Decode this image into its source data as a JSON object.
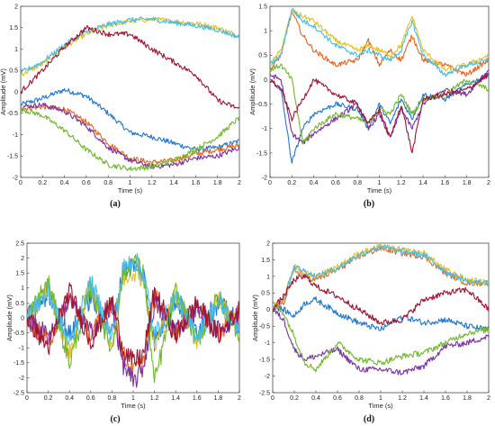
{
  "chart_data": [
    {
      "type": "line",
      "panel_label": "(a)",
      "xlabel": "Time (s)",
      "ylabel": "Amplitude (mV)",
      "xlim": [
        0,
        2
      ],
      "ylim": [
        -2,
        2
      ],
      "xticks": [
        "0",
        "0.2",
        "0.4",
        "0.6",
        "0.8",
        "1",
        "1.2",
        "1.4",
        "1.6",
        "1.8",
        "2"
      ],
      "yticks": [
        "-2",
        "-1.5",
        "-1",
        "-0.5",
        "0",
        "0.5",
        "1",
        "1.5",
        "2"
      ],
      "grid": false,
      "x": [
        0,
        0.2,
        0.4,
        0.6,
        0.8,
        1.0,
        1.2,
        1.4,
        1.6,
        1.8,
        2.0
      ],
      "series": [
        {
          "color": "#1f77d4",
          "values": [
            -0.3,
            -0.15,
            0.05,
            -0.1,
            -0.5,
            -0.95,
            -1.05,
            -1.2,
            -1.35,
            -1.3,
            -1.15
          ]
        },
        {
          "color": "#e8641e",
          "values": [
            -0.4,
            -0.35,
            -0.4,
            -0.7,
            -1.2,
            -1.55,
            -1.65,
            -1.6,
            -1.45,
            -1.35,
            -1.25
          ]
        },
        {
          "color": "#e8c020",
          "values": [
            0.4,
            0.65,
            1.05,
            1.35,
            1.55,
            1.65,
            1.7,
            1.65,
            1.6,
            1.5,
            1.3
          ]
        },
        {
          "color": "#7b2fa0",
          "values": [
            -0.35,
            -0.3,
            -0.45,
            -0.8,
            -1.3,
            -1.6,
            -1.75,
            -1.7,
            -1.55,
            -1.5,
            -1.3
          ]
        },
        {
          "color": "#6fb82c",
          "values": [
            -0.4,
            -0.55,
            -0.9,
            -1.35,
            -1.7,
            -1.8,
            -1.75,
            -1.6,
            -1.35,
            -1.05,
            -0.6
          ]
        },
        {
          "color": "#45bce8",
          "values": [
            0.45,
            0.7,
            1.1,
            1.4,
            1.58,
            1.68,
            1.7,
            1.62,
            1.55,
            1.45,
            1.28
          ]
        },
        {
          "color": "#a3122f",
          "values": [
            0.0,
            0.5,
            1.05,
            1.5,
            1.35,
            1.35,
            1.0,
            0.7,
            0.4,
            -0.2,
            -0.4
          ]
        }
      ]
    },
    {
      "type": "line",
      "panel_label": "(b)",
      "xlabel": "Time (s)",
      "ylabel": "Amplitude (mV)",
      "xlim": [
        0,
        2
      ],
      "ylim": [
        -2,
        1.5
      ],
      "xticks": [
        "0",
        "0.2",
        "0.4",
        "0.6",
        "0.8",
        "1",
        "1.2",
        "1.4",
        "1.6",
        "1.8",
        "2"
      ],
      "yticks": [
        "-2",
        "-1.5",
        "-1",
        "-0.5",
        "0",
        "0.5",
        "1",
        "1.5"
      ],
      "grid": false,
      "x": [
        0,
        0.1,
        0.2,
        0.3,
        0.4,
        0.6,
        0.8,
        0.9,
        1.0,
        1.1,
        1.2,
        1.3,
        1.4,
        1.6,
        1.8,
        2.0
      ],
      "series": [
        {
          "color": "#1f77d4",
          "values": [
            0.0,
            -0.2,
            -1.7,
            -1.0,
            -0.7,
            -0.5,
            -0.6,
            -1.0,
            -0.5,
            -0.9,
            -0.4,
            -0.8,
            -0.3,
            -0.4,
            -0.1,
            0.1
          ]
        },
        {
          "color": "#e8641e",
          "values": [
            0.2,
            0.5,
            1.4,
            0.9,
            0.6,
            0.3,
            0.4,
            0.8,
            0.3,
            0.6,
            0.4,
            0.9,
            0.4,
            0.3,
            0.1,
            0.4
          ]
        },
        {
          "color": "#e8c020",
          "values": [
            0.3,
            0.6,
            1.4,
            1.3,
            1.2,
            0.8,
            0.6,
            0.7,
            0.6,
            0.5,
            0.7,
            1.3,
            0.6,
            0.2,
            0.3,
            0.5
          ]
        },
        {
          "color": "#7b2fa0",
          "values": [
            0.1,
            0.0,
            -1.1,
            -1.3,
            -1.1,
            -0.8,
            -0.5,
            -1.0,
            -0.7,
            -1.2,
            -0.6,
            -1.0,
            -0.5,
            -0.2,
            -0.3,
            0.2
          ]
        },
        {
          "color": "#6fb82c",
          "values": [
            0.2,
            0.3,
            0.0,
            -1.3,
            -1.0,
            -0.7,
            -0.8,
            -0.9,
            -0.6,
            -0.7,
            -0.3,
            -0.7,
            -0.4,
            -0.3,
            0.0,
            -0.2
          ]
        },
        {
          "color": "#45bce8",
          "values": [
            0.3,
            0.5,
            1.45,
            1.2,
            1.1,
            0.7,
            0.5,
            0.6,
            0.5,
            0.4,
            0.6,
            1.2,
            0.5,
            0.1,
            0.3,
            0.4
          ]
        },
        {
          "color": "#a3122f",
          "values": [
            0.0,
            -0.2,
            -0.8,
            -0.4,
            0.0,
            -0.3,
            -0.5,
            -0.9,
            -0.6,
            -1.2,
            -0.5,
            -1.5,
            -0.4,
            -0.3,
            -0.2,
            0.1
          ]
        }
      ]
    },
    {
      "type": "line",
      "panel_label": "(c)",
      "xlabel": "Time (s)",
      "ylabel": "Amplitude (mV)",
      "xlim": [
        0,
        2
      ],
      "ylim": [
        -2.5,
        2.5
      ],
      "xticks": [
        "0",
        "0.2",
        "0.4",
        "0.6",
        "0.8",
        "1",
        "1.2",
        "1.4",
        "1.6",
        "1.8",
        "2"
      ],
      "yticks": [
        "-2.5",
        "-2",
        "-1.5",
        "-1",
        "-0.5",
        "0",
        "0.5",
        "1",
        "1.5",
        "2",
        "2.5"
      ],
      "grid": false,
      "x": [
        0,
        0.2,
        0.4,
        0.6,
        0.8,
        0.9,
        1.0,
        1.1,
        1.2,
        1.4,
        1.6,
        1.8,
        2.0
      ],
      "series": [
        {
          "color": "#1f77d4",
          "values": [
            0.0,
            0.8,
            -0.6,
            0.7,
            -0.5,
            1.5,
            1.8,
            1.4,
            -0.8,
            0.6,
            -0.4,
            0.5,
            -0.2
          ]
        },
        {
          "color": "#e8641e",
          "values": [
            0.0,
            -0.8,
            0.7,
            -0.6,
            0.5,
            -1.2,
            -1.8,
            -1.4,
            0.7,
            -0.5,
            0.4,
            -0.5,
            0.2
          ]
        },
        {
          "color": "#e8c020",
          "values": [
            0.0,
            1.0,
            -1.2,
            1.1,
            -0.9,
            1.3,
            1.6,
            1.3,
            -1.0,
            0.8,
            -0.7,
            0.6,
            -0.4
          ]
        },
        {
          "color": "#7b2fa0",
          "values": [
            0.0,
            -0.6,
            0.6,
            -0.5,
            0.4,
            -1.5,
            -2.2,
            -1.6,
            0.5,
            -0.4,
            0.3,
            -0.4,
            0.1
          ]
        },
        {
          "color": "#6fb82c",
          "values": [
            0.0,
            1.2,
            -1.5,
            1.0,
            -1.1,
            1.4,
            1.9,
            1.5,
            -2.2,
            0.9,
            -0.8,
            0.7,
            -0.5
          ]
        },
        {
          "color": "#45bce8",
          "values": [
            0.0,
            0.9,
            -0.9,
            1.2,
            -0.7,
            1.6,
            2.0,
            1.5,
            -0.6,
            0.7,
            -0.6,
            0.5,
            -0.3
          ]
        },
        {
          "color": "#a3122f",
          "values": [
            0.0,
            -1.0,
            0.9,
            -0.8,
            0.6,
            -1.0,
            -1.5,
            -1.2,
            0.9,
            -0.6,
            0.5,
            -0.6,
            0.3
          ]
        }
      ]
    },
    {
      "type": "line",
      "panel_label": "(d)",
      "xlabel": "Time (s)",
      "ylabel": "Amplitude (mV)",
      "xlim": [
        0,
        2
      ],
      "ylim": [
        -2.5,
        2
      ],
      "xticks": [
        "0",
        "0.2",
        "0.4",
        "0.6",
        "0.8",
        "1",
        "1.2",
        "1.4",
        "1.6",
        "1.8",
        "2"
      ],
      "yticks": [
        "-2.5",
        "-2",
        "-1.5",
        "-1",
        "-0.5",
        "0",
        "0.5",
        "1",
        "1.5",
        "2"
      ],
      "grid": false,
      "x": [
        0,
        0.1,
        0.2,
        0.3,
        0.4,
        0.6,
        0.8,
        1.0,
        1.2,
        1.4,
        1.6,
        1.8,
        2.0
      ],
      "series": [
        {
          "color": "#1f77d4",
          "values": [
            0.1,
            0.0,
            -0.2,
            0.2,
            0.3,
            -0.1,
            -0.4,
            -0.6,
            -0.2,
            -0.4,
            -0.3,
            -0.5,
            -0.6
          ]
        },
        {
          "color": "#e8641e",
          "values": [
            0.0,
            0.2,
            1.2,
            1.0,
            0.9,
            1.2,
            1.6,
            1.85,
            1.7,
            1.6,
            1.1,
            0.8,
            0.8
          ]
        },
        {
          "color": "#e8c020",
          "values": [
            0.1,
            0.3,
            1.3,
            1.1,
            1.0,
            1.3,
            1.7,
            1.9,
            1.8,
            1.7,
            1.2,
            0.9,
            0.8
          ]
        },
        {
          "color": "#7b2fa0",
          "values": [
            0.0,
            -0.3,
            -1.2,
            -1.5,
            -1.4,
            -1.2,
            -1.8,
            -1.8,
            -1.9,
            -1.7,
            -1.1,
            -1.0,
            -0.8
          ]
        },
        {
          "color": "#6fb82c",
          "values": [
            0.2,
            -0.1,
            -0.8,
            -1.6,
            -1.8,
            -1.0,
            -1.5,
            -1.6,
            -1.4,
            -1.3,
            -1.0,
            -0.7,
            -0.6
          ]
        },
        {
          "color": "#45bce8",
          "values": [
            0.0,
            0.3,
            1.3,
            1.15,
            1.0,
            1.25,
            1.65,
            1.9,
            1.75,
            1.65,
            1.15,
            0.85,
            0.8
          ]
        },
        {
          "color": "#a3122f",
          "values": [
            0.0,
            0.4,
            0.9,
            1.0,
            0.7,
            0.4,
            0.0,
            -0.4,
            -0.3,
            0.3,
            0.5,
            0.6,
            0.0
          ]
        }
      ]
    }
  ]
}
